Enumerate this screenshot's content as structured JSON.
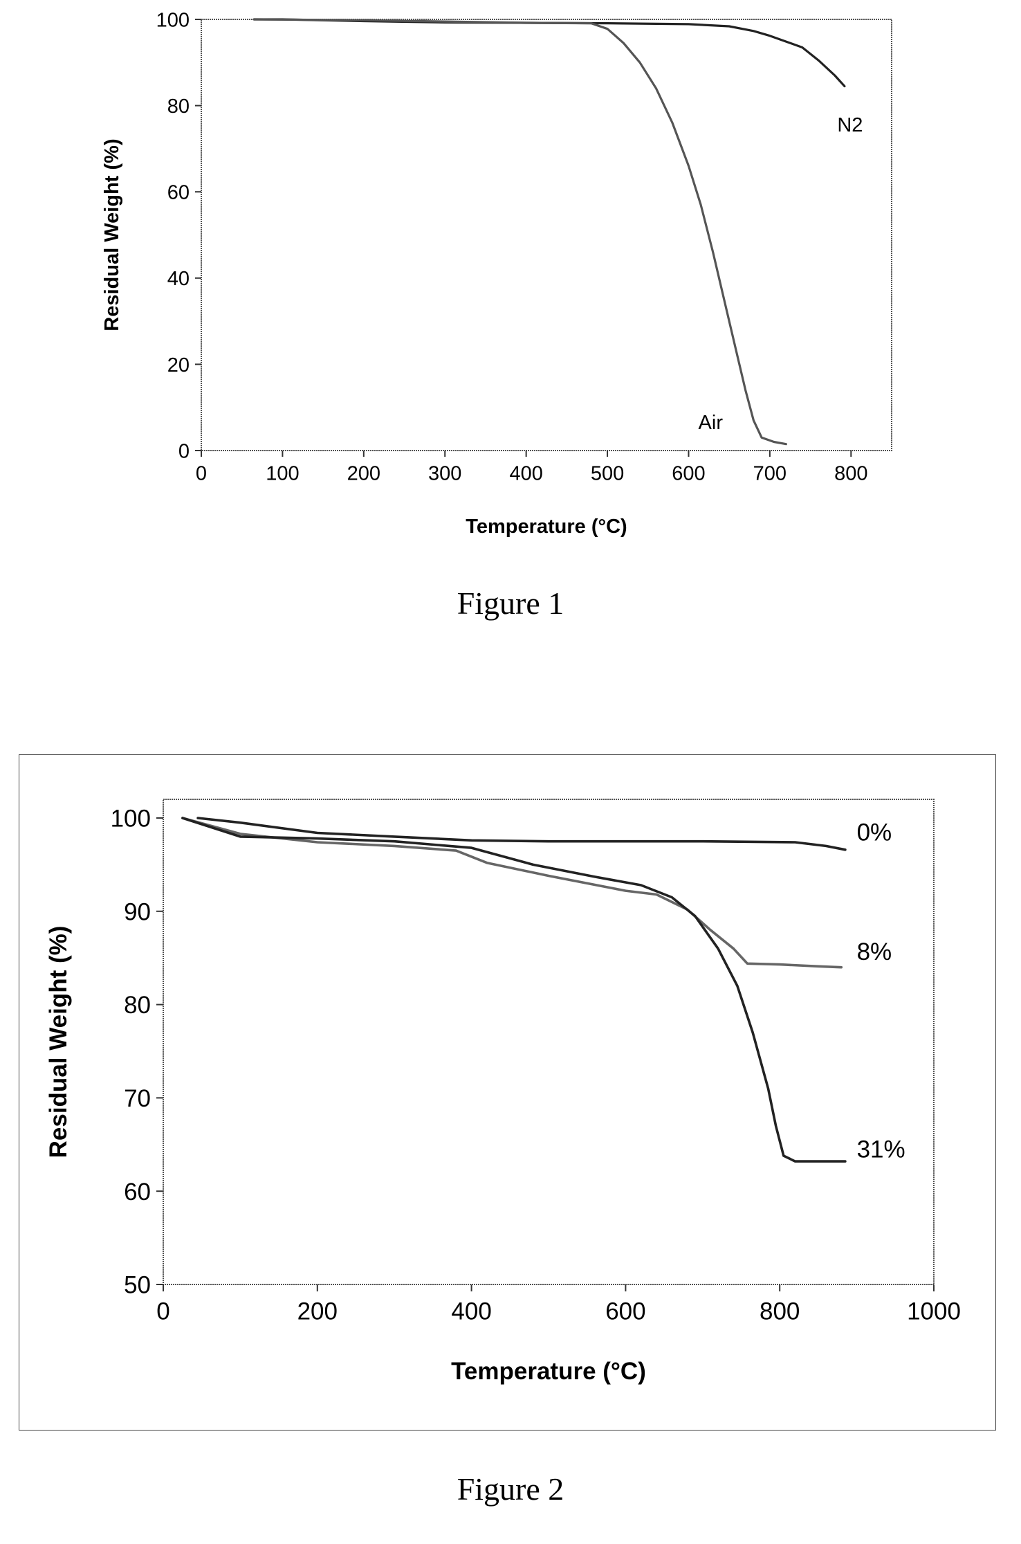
{
  "chart_data": [
    {
      "type": "line",
      "title": "",
      "caption": "Figure 1",
      "xlabel": "Temperature (°C)",
      "ylabel": "Residual Weight (%)",
      "xlim": [
        0,
        850
      ],
      "ylim": [
        0,
        100
      ],
      "x_ticks": [
        "0",
        "100",
        "200",
        "300",
        "400",
        "500",
        "600",
        "700",
        "800"
      ],
      "y_ticks": [
        "0",
        "20",
        "40",
        "60",
        "80",
        "100"
      ],
      "grid": false,
      "series": [
        {
          "name": "N2",
          "color": "#222222",
          "points": [
            [
              65,
              100
            ],
            [
              100,
              100
            ],
            [
              200,
              99.6
            ],
            [
              300,
              99.3
            ],
            [
              400,
              99.2
            ],
            [
              500,
              99.1
            ],
            [
              600,
              98.9
            ],
            [
              650,
              98.4
            ],
            [
              680,
              97.3
            ],
            [
              700,
              96.2
            ],
            [
              740,
              93.5
            ],
            [
              760,
              90.5
            ],
            [
              780,
              87
            ],
            [
              792,
              84.5
            ]
          ]
        },
        {
          "name": "Air",
          "color": "#555555",
          "points": [
            [
              65,
              100
            ],
            [
              200,
              99.8
            ],
            [
              300,
              99.5
            ],
            [
              400,
              99.2
            ],
            [
              480,
              99.1
            ],
            [
              500,
              97.8
            ],
            [
              520,
              94.5
            ],
            [
              540,
              90
            ],
            [
              560,
              84
            ],
            [
              580,
              76
            ],
            [
              600,
              66
            ],
            [
              615,
              57
            ],
            [
              630,
              46
            ],
            [
              645,
              34
            ],
            [
              660,
              22
            ],
            [
              670,
              14
            ],
            [
              680,
              7
            ],
            [
              690,
              3
            ],
            [
              705,
              2
            ],
            [
              720,
              1.5
            ]
          ]
        }
      ]
    },
    {
      "type": "line",
      "title": "",
      "caption": "Figure 2",
      "xlabel": "Temperature (°C)",
      "ylabel": "Residual Weight (%)",
      "xlim": [
        0,
        1000
      ],
      "ylim": [
        50,
        102
      ],
      "x_ticks": [
        "0",
        "200",
        "400",
        "600",
        "800",
        "1000"
      ],
      "y_ticks": [
        "50",
        "60",
        "70",
        "80",
        "90",
        "100"
      ],
      "grid": false,
      "series": [
        {
          "name": "0%",
          "color": "#222222",
          "points": [
            [
              45,
              100
            ],
            [
              100,
              99.5
            ],
            [
              200,
              98.4
            ],
            [
              300,
              98
            ],
            [
              400,
              97.6
            ],
            [
              500,
              97.5
            ],
            [
              600,
              97.5
            ],
            [
              700,
              97.5
            ],
            [
              820,
              97.4
            ],
            [
              860,
              97
            ],
            [
              885,
              96.6
            ]
          ]
        },
        {
          "name": "8%",
          "color": "#666666",
          "points": [
            [
              25,
              100
            ],
            [
              100,
              98.3
            ],
            [
              200,
              97.4
            ],
            [
              300,
              97
            ],
            [
              380,
              96.5
            ],
            [
              420,
              95.2
            ],
            [
              500,
              93.8
            ],
            [
              600,
              92.2
            ],
            [
              640,
              91.8
            ],
            [
              680,
              90.2
            ],
            [
              710,
              88
            ],
            [
              740,
              86
            ],
            [
              758,
              84.4
            ],
            [
              800,
              84.3
            ],
            [
              850,
              84.1
            ],
            [
              880,
              84
            ]
          ]
        },
        {
          "name": "31%",
          "color": "#222222",
          "points": [
            [
              25,
              100
            ],
            [
              100,
              98
            ],
            [
              200,
              97.8
            ],
            [
              300,
              97.5
            ],
            [
              400,
              96.8
            ],
            [
              480,
              95
            ],
            [
              560,
              93.7
            ],
            [
              620,
              92.8
            ],
            [
              660,
              91.5
            ],
            [
              690,
              89.5
            ],
            [
              720,
              86
            ],
            [
              745,
              82
            ],
            [
              765,
              77
            ],
            [
              785,
              71
            ],
            [
              795,
              67
            ],
            [
              805,
              63.8
            ],
            [
              820,
              63.2
            ],
            [
              850,
              63.2
            ],
            [
              885,
              63.2
            ]
          ]
        }
      ]
    }
  ]
}
